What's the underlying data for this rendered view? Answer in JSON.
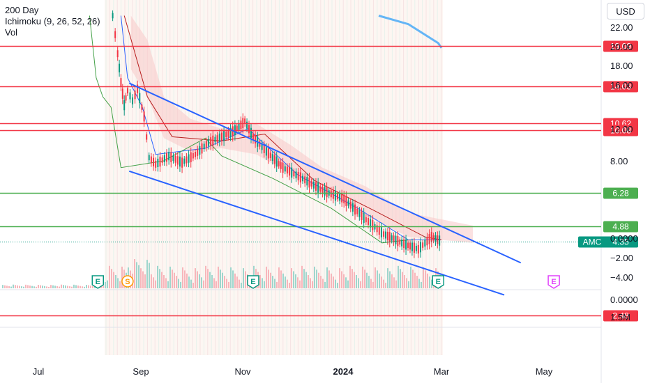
{
  "legend": {
    "ma": "200 Day",
    "ichimoku": "Ichimoku (9, 26, 52, 26)",
    "volume": "Vol"
  },
  "currency": "USD",
  "colors": {
    "resistance": "#f23645",
    "support": "#4caf50",
    "trend": "#2962ff",
    "ma200": "#64b5f6",
    "ticker_badge": "#089981",
    "earnings": "#089981",
    "split": "#ff9800",
    "future_earnings": "#e040fb",
    "cloud": "#f8c8c8"
  },
  "chart_data": {
    "type": "line",
    "series": [],
    "x_axis": {
      "tick_labels": [
        "Jul",
        "Sep",
        "Nov",
        "2024",
        "Mar",
        "May"
      ],
      "range": [
        "2023-06-15",
        "2024-06-01"
      ]
    },
    "price_axis": {
      "tick_labels": [
        "22.00",
        "20.00",
        "18.00",
        "16.00",
        "12.00",
        "8.00"
      ],
      "scale": "log",
      "range": [
        2.2,
        24
      ]
    },
    "oscillator_axis": {
      "tick_labels": [
        "0.0000",
        "−2.00",
        "−4.00"
      ]
    },
    "volume_axis": {
      "tick_labels": [
        "0.0000",
        "1.5M"
      ]
    },
    "level_lines": [
      {
        "value": 19.09,
        "label": "19.09",
        "kind": "resistance"
      },
      {
        "value": 14.03,
        "label": "14.03",
        "kind": "resistance"
      },
      {
        "value": 10.62,
        "label": "10.62",
        "kind": "resistance"
      },
      {
        "value": 10.08,
        "label": "10.08",
        "kind": "resistance"
      },
      {
        "value": 6.28,
        "label": "6.28",
        "kind": "support"
      },
      {
        "value": 4.88,
        "label": "4.88",
        "kind": "support"
      },
      {
        "value": 2.48,
        "label": "2.48",
        "kind": "resistance"
      }
    ],
    "last_price": {
      "ticker": "AMC",
      "value": 4.35,
      "label": "4.35"
    },
    "trend_lines": [
      {
        "from": [
          "2023-08-25",
          14.4
        ],
        "to": [
          "2024-04-18",
          3.7
        ]
      },
      {
        "from": [
          "2023-08-25",
          7.4
        ],
        "to": [
          "2024-04-08",
          2.9
        ]
      }
    ],
    "events": [
      {
        "label": "E",
        "date": "2023-08-06",
        "kind": "earnings"
      },
      {
        "label": "S",
        "date": "2023-08-24",
        "kind": "split"
      },
      {
        "label": "E",
        "date": "2023-11-08",
        "kind": "earnings"
      },
      {
        "label": "E",
        "date": "2024-02-28",
        "kind": "earnings"
      },
      {
        "label": "E",
        "date": "2024-05-08",
        "kind": "future_earnings"
      }
    ]
  }
}
